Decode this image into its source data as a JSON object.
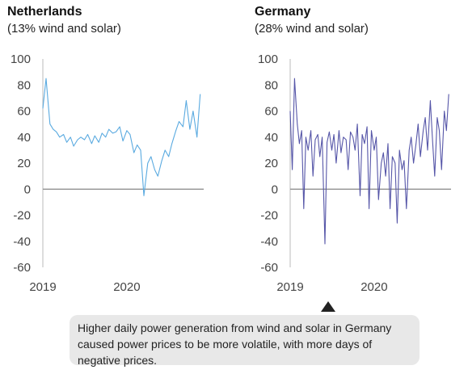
{
  "panels": [
    {
      "title": "Netherlands",
      "subtitle": "(13% wind and solar)"
    },
    {
      "title": "Germany",
      "subtitle": "(28% wind and solar)"
    }
  ],
  "callout": {
    "lines": [
      "Higher daily power generation from wind and solar in Germany",
      "caused power prices to be more volatile, with more days of",
      "negative prices."
    ]
  },
  "chart_data": [
    {
      "type": "line",
      "title": "Netherlands",
      "subtitle": "(13% wind and solar)",
      "xlabel": "",
      "ylabel": "",
      "x_ticks": [
        "2019",
        "2020"
      ],
      "y_ticks": [
        100,
        80,
        60,
        40,
        20,
        0,
        -20,
        -40,
        -60
      ],
      "ylim": [
        -60,
        100
      ],
      "xlim": [
        "2019-01-01",
        "2020-11-30"
      ],
      "grid": false,
      "color": "#5aaae0",
      "series": [
        {
          "name": "",
          "x": [
            "2019-01-01",
            "2019-01-15",
            "2019-02-01",
            "2019-02-15",
            "2019-03-01",
            "2019-03-15",
            "2019-04-01",
            "2019-04-15",
            "2019-05-01",
            "2019-05-15",
            "2019-06-01",
            "2019-06-15",
            "2019-07-01",
            "2019-07-15",
            "2019-08-01",
            "2019-08-15",
            "2019-09-01",
            "2019-09-15",
            "2019-10-01",
            "2019-10-15",
            "2019-11-01",
            "2019-11-15",
            "2019-12-01",
            "2019-12-15",
            "2020-01-01",
            "2020-01-15",
            "2020-02-01",
            "2020-02-15",
            "2020-03-01",
            "2020-03-15",
            "2020-04-01",
            "2020-04-15",
            "2020-05-01",
            "2020-05-15",
            "2020-06-01",
            "2020-06-15",
            "2020-07-01",
            "2020-07-15",
            "2020-08-01",
            "2020-08-15",
            "2020-09-01",
            "2020-09-15",
            "2020-10-01",
            "2020-10-15",
            "2020-11-01",
            "2020-11-15"
          ],
          "y": [
            62,
            85,
            50,
            46,
            44,
            40,
            42,
            36,
            40,
            33,
            38,
            40,
            38,
            42,
            35,
            41,
            36,
            43,
            40,
            46,
            43,
            44,
            48,
            37,
            45,
            42,
            28,
            34,
            30,
            -5,
            20,
            25,
            15,
            10,
            22,
            30,
            25,
            35,
            45,
            52,
            48,
            68,
            46,
            60,
            40,
            73
          ]
        }
      ]
    },
    {
      "type": "line",
      "title": "Germany",
      "subtitle": "(28% wind and solar)",
      "xlabel": "",
      "ylabel": "",
      "x_ticks": [
        "2019",
        "2020"
      ],
      "y_ticks": [
        100,
        80,
        60,
        40,
        20,
        0,
        -20,
        -40,
        -60
      ],
      "ylim": [
        -60,
        100
      ],
      "xlim": [
        "2019-01-01",
        "2020-11-30"
      ],
      "grid": false,
      "color": "#5656a8",
      "series": [
        {
          "name": "",
          "x": [
            "2019-01-01",
            "2019-01-10",
            "2019-01-20",
            "2019-02-01",
            "2019-02-10",
            "2019-02-20",
            "2019-03-01",
            "2019-03-10",
            "2019-03-20",
            "2019-04-01",
            "2019-04-10",
            "2019-04-20",
            "2019-05-01",
            "2019-05-10",
            "2019-05-20",
            "2019-06-01",
            "2019-06-10",
            "2019-06-20",
            "2019-07-01",
            "2019-07-10",
            "2019-07-20",
            "2019-08-01",
            "2019-08-10",
            "2019-08-20",
            "2019-09-01",
            "2019-09-10",
            "2019-09-20",
            "2019-10-01",
            "2019-10-10",
            "2019-10-20",
            "2019-11-01",
            "2019-11-10",
            "2019-11-20",
            "2019-12-01",
            "2019-12-10",
            "2019-12-20",
            "2020-01-01",
            "2020-01-10",
            "2020-01-20",
            "2020-02-01",
            "2020-02-10",
            "2020-02-20",
            "2020-03-01",
            "2020-03-10",
            "2020-03-20",
            "2020-04-01",
            "2020-04-10",
            "2020-04-20",
            "2020-05-01",
            "2020-05-10",
            "2020-05-20",
            "2020-06-01",
            "2020-06-10",
            "2020-06-20",
            "2020-07-01",
            "2020-07-10",
            "2020-07-20",
            "2020-08-01",
            "2020-08-10",
            "2020-08-20",
            "2020-09-01",
            "2020-09-10",
            "2020-09-20",
            "2020-10-01",
            "2020-10-10",
            "2020-10-20",
            "2020-11-01",
            "2020-11-10",
            "2020-11-20"
          ],
          "y": [
            60,
            15,
            85,
            50,
            35,
            45,
            -15,
            40,
            30,
            45,
            10,
            38,
            42,
            25,
            40,
            -42,
            36,
            44,
            30,
            42,
            20,
            45,
            28,
            40,
            38,
            15,
            44,
            40,
            30,
            50,
            -5,
            42,
            35,
            48,
            -15,
            45,
            30,
            40,
            -8,
            20,
            28,
            10,
            35,
            -15,
            25,
            20,
            -26,
            30,
            15,
            22,
            -15,
            30,
            40,
            20,
            35,
            50,
            25,
            45,
            55,
            30,
            68,
            40,
            10,
            55,
            45,
            15,
            60,
            45,
            73
          ]
        }
      ]
    }
  ]
}
